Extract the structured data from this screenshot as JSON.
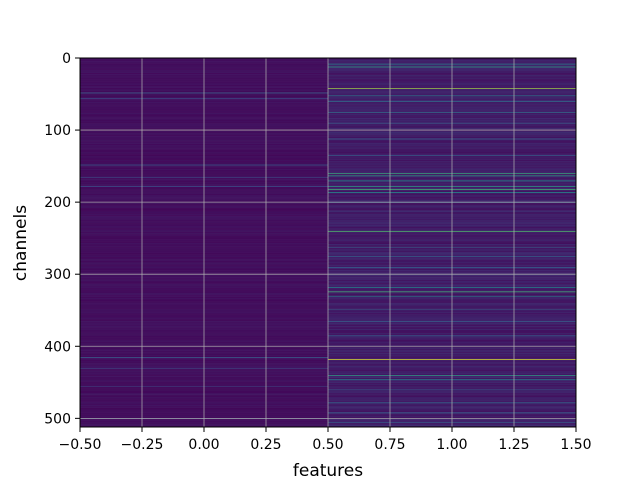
{
  "chart_data": {
    "type": "heatmap",
    "title": "",
    "xlabel": "features",
    "ylabel": "channels",
    "xlim": [
      -0.5,
      1.5
    ],
    "ylim": [
      512,
      0
    ],
    "x_ticks": [
      -0.5,
      -0.25,
      0.0,
      0.25,
      0.5,
      0.75,
      1.0,
      1.25,
      1.5
    ],
    "x_tick_labels": [
      "−0.50",
      "−0.25",
      "0.00",
      "0.25",
      "0.50",
      "0.75",
      "1.00",
      "1.25",
      "1.50"
    ],
    "y_ticks": [
      0,
      100,
      200,
      300,
      400,
      500
    ],
    "y_tick_labels": [
      "0",
      "100",
      "200",
      "300",
      "400",
      "500"
    ],
    "grid": true,
    "colormap": "viridis",
    "n_rows": 512,
    "n_cols": 2,
    "columns": [
      {
        "feature_index": 0,
        "base_level": 0.05,
        "bright_channels": [
          [
            48,
            0.3
          ],
          [
            56,
            0.25
          ],
          [
            148,
            0.3
          ],
          [
            165,
            0.2
          ],
          [
            178,
            0.25
          ],
          [
            415,
            0.3
          ],
          [
            430,
            0.2
          ],
          [
            455,
            0.18
          ],
          [
            500,
            0.2
          ]
        ]
      },
      {
        "feature_index": 1,
        "base_level": 0.1,
        "bright_channels": [
          [
            8,
            0.45
          ],
          [
            12,
            0.55
          ],
          [
            42,
            0.85
          ],
          [
            52,
            0.4
          ],
          [
            60,
            0.35
          ],
          [
            75,
            0.35
          ],
          [
            90,
            0.3
          ],
          [
            112,
            0.3
          ],
          [
            135,
            0.3
          ],
          [
            160,
            0.6
          ],
          [
            163,
            0.55
          ],
          [
            170,
            0.5
          ],
          [
            178,
            0.55
          ],
          [
            182,
            0.65
          ],
          [
            186,
            0.5
          ],
          [
            200,
            0.3
          ],
          [
            240,
            0.7
          ],
          [
            262,
            0.3
          ],
          [
            275,
            0.3
          ],
          [
            290,
            0.3
          ],
          [
            318,
            0.45
          ],
          [
            324,
            0.65
          ],
          [
            330,
            0.45
          ],
          [
            348,
            0.3
          ],
          [
            365,
            0.3
          ],
          [
            385,
            0.3
          ],
          [
            418,
            0.95
          ],
          [
            440,
            0.55
          ],
          [
            446,
            0.45
          ],
          [
            460,
            0.3
          ],
          [
            478,
            0.35
          ],
          [
            492,
            0.3
          ],
          [
            505,
            0.3
          ]
        ]
      }
    ]
  }
}
